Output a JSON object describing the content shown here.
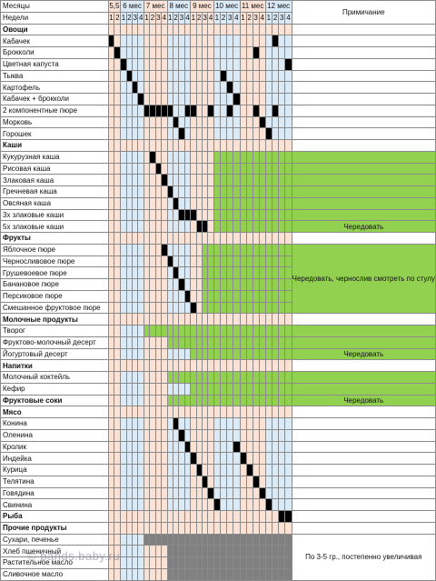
{
  "header": {
    "months_label": "Месяцы",
    "weeks_label": "Недели",
    "note_label": "Примичание",
    "months": [
      {
        "label": "5,5",
        "weeks": 2
      },
      {
        "label": "6 мес",
        "weeks": 4
      },
      {
        "label": "7 мес",
        "weeks": 4
      },
      {
        "label": "8 мес",
        "weeks": 4
      },
      {
        "label": "9 мес",
        "weeks": 4
      },
      {
        "label": "10 мес",
        "weeks": 4
      },
      {
        "label": "11 мес",
        "weeks": 4
      },
      {
        "label": "12 мес",
        "weeks": 4
      }
    ]
  },
  "colors": {
    "pink": "#fbe2d5",
    "blue": "#dbeaf7",
    "black": "#000000",
    "green": "#92d050",
    "gray": "#808080",
    "section": "#fbe2d5"
  },
  "rows": [
    {
      "label": "Овощи",
      "section": true
    },
    {
      "label": "Кабачек",
      "black": [
        1,
        28
      ]
    },
    {
      "label": "Брокколи",
      "black": [
        2,
        25
      ]
    },
    {
      "label": "Цветная капуста",
      "black": [
        3,
        30
      ]
    },
    {
      "label": "Тыква",
      "black": [
        4,
        20
      ]
    },
    {
      "label": "Картофель",
      "black": [
        5,
        21
      ]
    },
    {
      "label": "Кабачек + брокколи",
      "black": [
        6,
        22
      ]
    },
    {
      "label": "2 компонентные пюре",
      "black": [
        7,
        8,
        9,
        10,
        11,
        14,
        15,
        18,
        21,
        25,
        28
      ]
    },
    {
      "label": "Морковь",
      "black": [
        12,
        26
      ]
    },
    {
      "label": "Горошек",
      "black": [
        13,
        27
      ]
    },
    {
      "label": "Каши",
      "section": true
    },
    {
      "label": "Кукурузная каша",
      "black": [
        8
      ],
      "green_from": 19
    },
    {
      "label": "Рисовая каша",
      "black": [
        9
      ],
      "green_from": 19
    },
    {
      "label": "Злаковая каша",
      "black": [
        10
      ],
      "green_from": 19
    },
    {
      "label": "Гречневая каша",
      "black": [
        11
      ],
      "green_from": 19
    },
    {
      "label": "Овсяная каша",
      "black": [
        12
      ],
      "green_from": 19
    },
    {
      "label": "3х злаковые каши",
      "black": [
        13,
        14,
        15
      ],
      "green_from": 19
    },
    {
      "label": "5х злаковые каши",
      "black": [
        16,
        17
      ],
      "green_from": 19,
      "note": "Чередовать"
    },
    {
      "label": "Фрукты",
      "section": true
    },
    {
      "label": "Яблочное пюре",
      "black": [
        10
      ],
      "green_from": 17
    },
    {
      "label": "Черносливовое пюре",
      "black": [
        11
      ],
      "green_from": 17
    },
    {
      "label": "Грушевоевое пюре",
      "black": [
        12
      ],
      "green_from": 17
    },
    {
      "label": "Банановое пюре",
      "black": [
        13
      ],
      "green_from": 17
    },
    {
      "label": "Персиковое пюре",
      "black": [
        14
      ],
      "green_from": 17
    },
    {
      "label": "Смешанное  фруктовое пюре",
      "black": [
        15
      ],
      "green_from": 17
    },
    {
      "label": "Молочные продукты",
      "section": true
    },
    {
      "label": "Творог",
      "green_from": 7
    },
    {
      "label": "Фруктово-молочный десерт",
      "green_from": 11
    },
    {
      "label": "Йогуртовый десерт",
      "green_from": 15,
      "note": "Чередовать"
    },
    {
      "label": "Напитки",
      "section": true
    },
    {
      "label": "Молочный коктейль",
      "green_from": 11
    },
    {
      "label": "Кефир",
      "green_from": 15
    },
    {
      "label": "Фруктовые соки",
      "bold": true,
      "green_from": 11,
      "note": "Чередовать"
    },
    {
      "label": "Мясо",
      "section": true
    },
    {
      "label": "Конина",
      "black": [
        12
      ]
    },
    {
      "label": "Оленина",
      "black": [
        13
      ]
    },
    {
      "label": "Кролик",
      "black": [
        14,
        22
      ]
    },
    {
      "label": "Индейка",
      "black": [
        15,
        23
      ]
    },
    {
      "label": "Курица",
      "black": [
        16,
        24
      ]
    },
    {
      "label": "Телятина",
      "black": [
        17,
        25
      ]
    },
    {
      "label": "Говядина",
      "black": [
        18,
        26
      ]
    },
    {
      "label": "Свинина",
      "black": [
        19,
        27
      ]
    },
    {
      "label": "Рыба",
      "section": true,
      "black": [
        29,
        30
      ]
    },
    {
      "label": "Прочие продукты",
      "section": true
    },
    {
      "label": "Сухари, печенье",
      "gray_from": 7
    },
    {
      "label": "Хлеб пшеничный",
      "gray_from": 11
    },
    {
      "label": "Растительное масло",
      "gray_from": 11
    },
    {
      "label": "Сливочное масло",
      "gray_from": 11
    }
  ],
  "notes": {
    "fruits": "Чередовать, чернослив смотреть по стулу",
    "other": "По 3-5 гр., постепенно увеличивая"
  },
  "watermark": "© pands.baby.ru"
}
